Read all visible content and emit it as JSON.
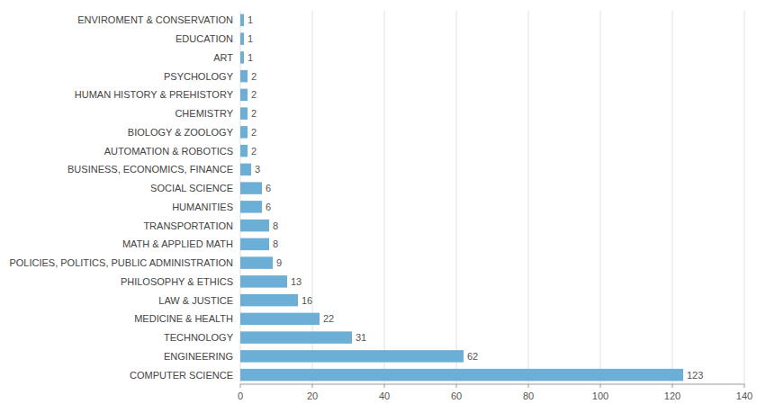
{
  "chart_data": {
    "type": "bar",
    "orientation": "horizontal",
    "categories": [
      "ENVIROMENT & CONSERVATION",
      "EDUCATION",
      "ART",
      "PSYCHOLOGY",
      "HUMAN HISTORY & PREHISTORY",
      "CHEMISTRY",
      "BIOLOGY & ZOOLOGY",
      "AUTOMATION & ROBOTICS",
      "BUSINESS, ECONOMICS, FINANCE",
      "SOCIAL SCIENCE",
      "HUMANITIES",
      "TRANSPORTATION",
      "MATH & APPLIED MATH",
      "POLICIES, POLITICS, PUBLIC ADMINISTRATION",
      "PHILOSOPHY & ETHICS",
      "LAW & JUSTICE",
      "MEDICINE & HEALTH",
      "TECHNOLOGY",
      "ENGINEERING",
      "COMPUTER SCIENCE"
    ],
    "values": [
      1,
      1,
      1,
      2,
      2,
      2,
      2,
      2,
      3,
      6,
      6,
      8,
      8,
      9,
      13,
      16,
      22,
      31,
      62,
      123
    ],
    "color": "#6baed6",
    "xlim": [
      0,
      140
    ],
    "xticks": [
      0,
      20,
      40,
      60,
      80,
      100,
      120,
      140
    ],
    "grid": true,
    "data_labels": true
  }
}
